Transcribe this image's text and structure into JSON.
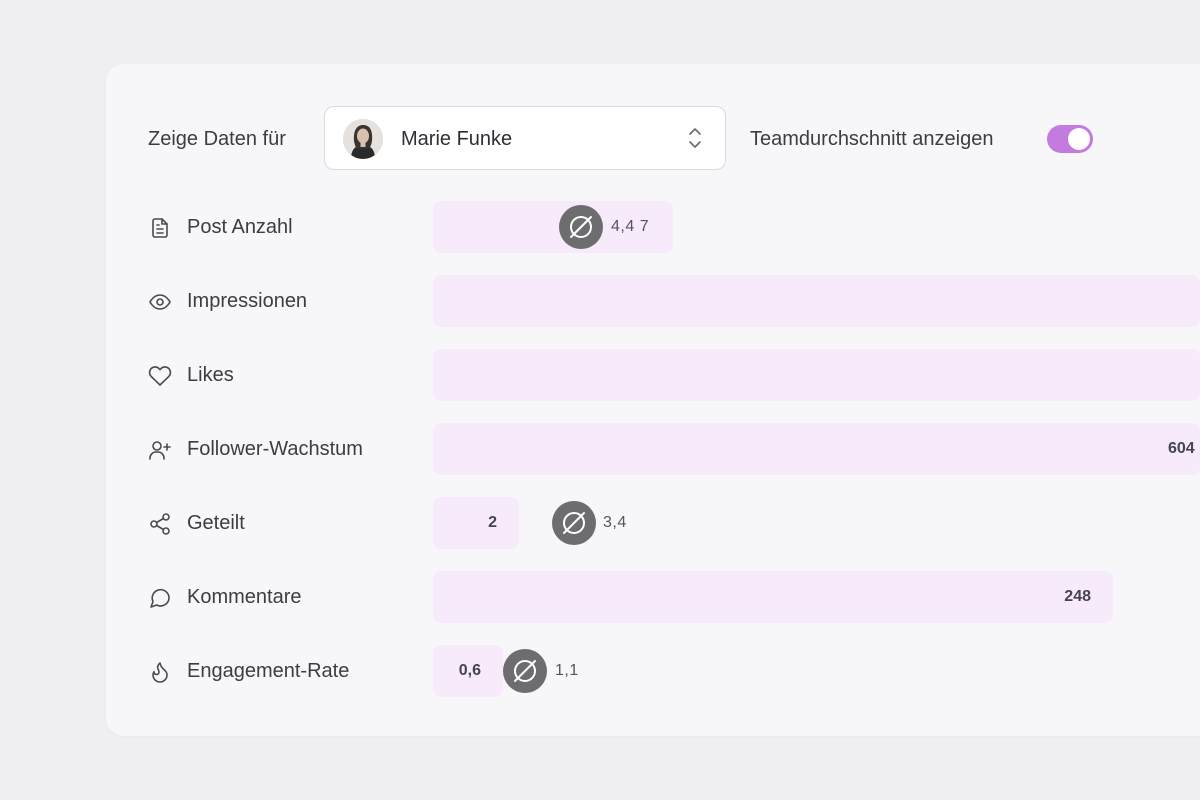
{
  "filter": {
    "label": "Zeige Daten für",
    "selected_user": "Marie Funke"
  },
  "team_average_toggle": {
    "label": "Teamdurchschnitt anzeigen",
    "enabled": true
  },
  "colors": {
    "accent": "#c47be0",
    "bar_fill": "#f6eafb",
    "avg_badge": "#6d6d70"
  },
  "metrics": [
    {
      "icon": "document-icon",
      "label": "Post Anzahl",
      "value": "",
      "team_avg": "4,4 7"
    },
    {
      "icon": "eye-icon",
      "label": "Impressionen",
      "value": "",
      "team_avg": ""
    },
    {
      "icon": "heart-icon",
      "label": "Likes",
      "value": "",
      "team_avg": ""
    },
    {
      "icon": "user-plus-icon",
      "label": "Follower-Wachstum",
      "value": "604",
      "team_avg": ""
    },
    {
      "icon": "share-icon",
      "label": "Geteilt",
      "value": "2",
      "team_avg": "3,4"
    },
    {
      "icon": "comment-icon",
      "label": "Kommentare",
      "value": "248",
      "team_avg": ""
    },
    {
      "icon": "flame-icon",
      "label": "Engagement-Rate",
      "value": "0,6",
      "team_avg": "1,1"
    }
  ]
}
